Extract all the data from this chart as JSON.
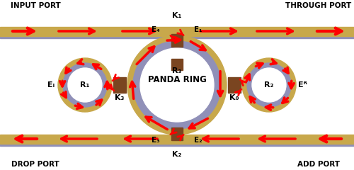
{
  "bg_color": "#ffffff",
  "waveguide_color": "#c8a84b",
  "waveguide_shadow": "#9090b8",
  "coupler_color": "#7a4520",
  "arrow_color": "#ff0000",
  "text_color": "#000000",
  "title": "PANDA RING",
  "labels": {
    "input_port": "INPUT PORT",
    "through_port": "THROUGH PORT",
    "drop_port": "DROP PORT",
    "add_port": "ADD PORT",
    "K1": "K₁",
    "K2": "K₂",
    "K3": "K₃",
    "K0": "K₀",
    "E1": "E₁",
    "E2": "E₂",
    "E3": "E₃",
    "E4": "E₄",
    "EL": "Eₗ",
    "ER": "Eᴿ",
    "R1": "R₁",
    "R2": "R₂",
    "R3": "R₃"
  }
}
